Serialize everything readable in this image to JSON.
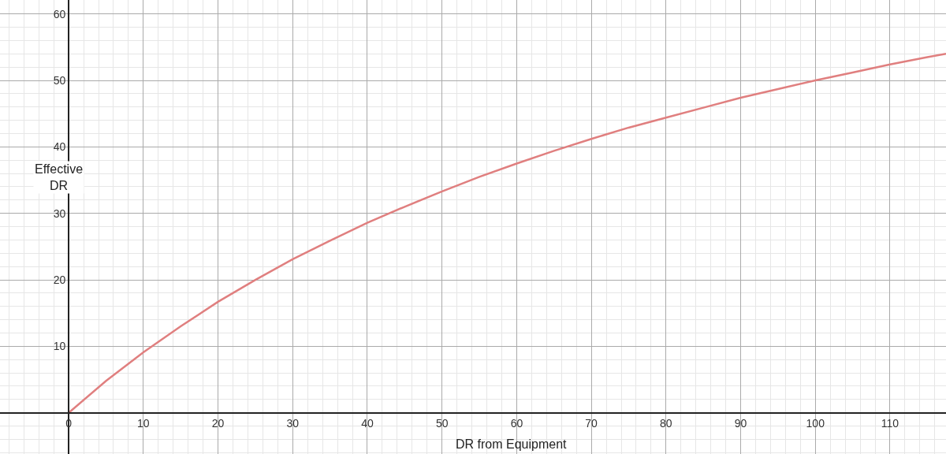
{
  "chart_data": {
    "type": "line",
    "xlabel": "DR from Equipment",
    "ylabel": "Effective DR",
    "x": [
      0,
      5,
      10,
      15,
      20,
      25,
      30,
      35,
      40,
      45,
      50,
      55,
      60,
      65,
      70,
      75,
      80,
      85,
      90,
      95,
      100,
      105,
      110,
      115,
      117.5
    ],
    "series": [
      {
        "color": "#e07f7f",
        "values": [
          0,
          4.8,
          9.1,
          13.0,
          16.7,
          20.0,
          23.1,
          25.9,
          28.6,
          31.0,
          33.3,
          35.5,
          37.5,
          39.4,
          41.2,
          42.9,
          44.4,
          45.9,
          47.4,
          48.7,
          50.0,
          51.2,
          52.4,
          53.5,
          54.0
        ]
      }
    ],
    "xlim": [
      -9.2,
      117.5
    ],
    "ylim": [
      -6.2,
      62.1
    ],
    "xticks": [
      0,
      10,
      20,
      30,
      40,
      50,
      60,
      70,
      80,
      90,
      100,
      110
    ],
    "yticks": [
      10,
      20,
      30,
      40,
      50,
      60
    ],
    "grid": true,
    "marker": "none",
    "line_style": "solid"
  }
}
